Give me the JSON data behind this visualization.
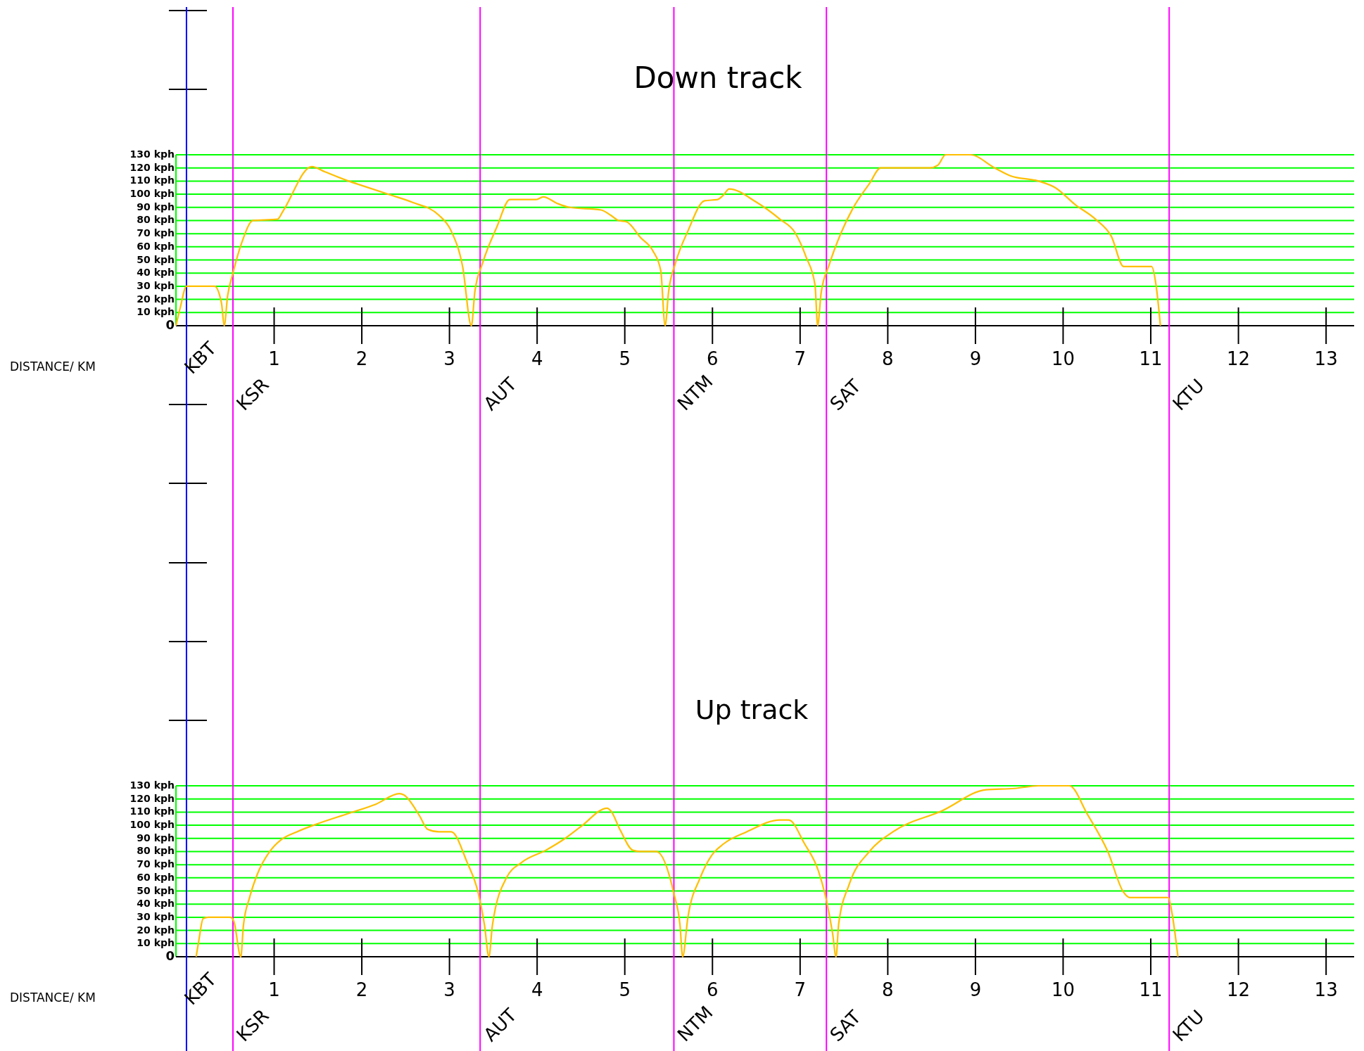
{
  "chart_data": [
    {
      "type": "line",
      "title": "Down track",
      "xlabel": "DISTANCE/ KM",
      "xlim": [
        -0.12,
        13.32
      ],
      "ylim": [
        0,
        130
      ],
      "xticks": [
        1,
        2,
        3,
        4,
        5,
        6,
        7,
        8,
        9,
        10,
        11,
        12,
        13
      ],
      "yticks": [
        {
          "value": 0,
          "label": "0"
        },
        {
          "value": 10,
          "label": "10  kph"
        },
        {
          "value": 20,
          "label": "20  kph"
        },
        {
          "value": 30,
          "label": "30  kph"
        },
        {
          "value": 40,
          "label": "40  kph"
        },
        {
          "value": 50,
          "label": "50  kph"
        },
        {
          "value": 60,
          "label": "60  kph"
        },
        {
          "value": 70,
          "label": "70  kph"
        },
        {
          "value": 80,
          "label": "80  kph"
        },
        {
          "value": 90,
          "label": "90  kph"
        },
        {
          "value": 100,
          "label": "100  kph"
        },
        {
          "value": 110,
          "label": "110  kph"
        },
        {
          "value": 120,
          "label": "120  kph"
        },
        {
          "value": 130,
          "label": "130  kph"
        }
      ],
      "grid": "y",
      "ref_lines": [
        {
          "axis": "x",
          "value": 0,
          "label": "KBT",
          "color": "#0000ff"
        },
        {
          "axis": "x",
          "value": 0.53,
          "label": "KSR",
          "color": "#ff00ff"
        },
        {
          "axis": "x",
          "value": 3.35,
          "label": "AUT",
          "color": "#ff00ff"
        },
        {
          "axis": "x",
          "value": 5.56,
          "label": "NTM",
          "color": "#ff00ff"
        },
        {
          "axis": "x",
          "value": 7.3,
          "label": "SAT",
          "color": "#ff00ff"
        },
        {
          "axis": "x",
          "value": 11.21,
          "label": "KTU",
          "color": "#ff00ff"
        }
      ],
      "series": [
        {
          "color": "#ffbf00",
          "x": [
            -0.12,
            -0.07,
            0,
            0.32,
            0.4,
            0.43,
            0.47,
            0.53,
            0.63,
            0.76,
            1.04,
            1.1,
            1.43,
            1.58,
            1.85,
            2.03,
            2.3,
            2.57,
            2.88,
            3.02,
            3.15,
            3.25,
            3.29,
            3.38,
            3.54,
            3.69,
            3.83,
            3.99,
            4.07,
            4.23,
            4.37,
            4.73,
            4.84,
            4.93,
            5.02,
            5.18,
            5.32,
            5.41,
            5.46,
            5.5,
            5.58,
            5.72,
            5.91,
            6.06,
            6.12,
            6.19,
            6.5,
            6.77,
            6.94,
            7.07,
            7.17,
            7.2,
            7.24,
            7.33,
            7.47,
            7.6,
            7.79,
            7.92,
            8.48,
            8.57,
            8.66,
            8.94,
            9.22,
            9.4,
            9.72,
            9.91,
            10.14,
            10.37,
            10.55,
            10.69,
            11.01,
            11.06,
            11.11
          ],
          "values": [
            0,
            14,
            30,
            30,
            17,
            0,
            23,
            40,
            63,
            80,
            81,
            87,
            121,
            117,
            110,
            106,
            100,
            94,
            84,
            72,
            45,
            0,
            26,
            48,
            75,
            96,
            96,
            96,
            98,
            93,
            90,
            88,
            84,
            80,
            79,
            67,
            57,
            42,
            0,
            26,
            48,
            72,
            95,
            96,
            99,
            104,
            94,
            81,
            71,
            52,
            31,
            0,
            25,
            46,
            71,
            89,
            108,
            120,
            120,
            122,
            130,
            130,
            120,
            114,
            110,
            105,
            92,
            81,
            68,
            45,
            45,
            31,
            0
          ]
        }
      ]
    },
    {
      "type": "line",
      "title": "Up track",
      "xlabel": "DISTANCE/ KM",
      "xlim": [
        -0.12,
        13.32
      ],
      "ylim": [
        0,
        130
      ],
      "xticks": [
        1,
        2,
        3,
        4,
        5,
        6,
        7,
        8,
        9,
        10,
        11,
        12,
        13
      ],
      "yticks": [
        {
          "value": 0,
          "label": "0"
        },
        {
          "value": 10,
          "label": "10  kph"
        },
        {
          "value": 20,
          "label": "20  kph"
        },
        {
          "value": 30,
          "label": "30  kph"
        },
        {
          "value": 40,
          "label": "40  kph"
        },
        {
          "value": 50,
          "label": "50  kph"
        },
        {
          "value": 60,
          "label": "60  kph"
        },
        {
          "value": 70,
          "label": "70  kph"
        },
        {
          "value": 80,
          "label": "80  kph"
        },
        {
          "value": 90,
          "label": "90  kph"
        },
        {
          "value": 100,
          "label": "100  kph"
        },
        {
          "value": 110,
          "label": "110  kph"
        },
        {
          "value": 120,
          "label": "120  kph"
        },
        {
          "value": 130,
          "label": "130  kph"
        }
      ],
      "grid": "y",
      "ref_lines": [
        {
          "axis": "x",
          "value": 0,
          "label": "KBT",
          "color": "#0000ff"
        },
        {
          "axis": "x",
          "value": 0.53,
          "label": "KSR",
          "color": "#ff00ff"
        },
        {
          "axis": "x",
          "value": 3.35,
          "label": "AUT",
          "color": "#ff00ff"
        },
        {
          "axis": "x",
          "value": 5.56,
          "label": "NTM",
          "color": "#ff00ff"
        },
        {
          "axis": "x",
          "value": 7.3,
          "label": "SAT",
          "color": "#ff00ff"
        },
        {
          "axis": "x",
          "value": 11.21,
          "label": "KTU",
          "color": "#ff00ff"
        }
      ],
      "series": [
        {
          "color": "#ffbf00",
          "x": [
            0.11,
            0.14,
            0.19,
            0.25,
            0.5,
            0.54,
            0.62,
            0.65,
            0.72,
            0.81,
            0.95,
            1.08,
            1.26,
            1.49,
            1.85,
            2.16,
            2.43,
            2.48,
            2.66,
            2.75,
            2.88,
            3.02,
            3.2,
            3.33,
            3.4,
            3.45,
            3.49,
            3.65,
            3.83,
            4.1,
            4.32,
            4.5,
            4.8,
            4.84,
            4.95,
            5.09,
            5.18,
            5.36,
            5.56,
            5.63,
            5.66,
            5.72,
            5.86,
            5.99,
            6.13,
            6.39,
            6.77,
            6.87,
            7.05,
            7.21,
            7.3,
            7.37,
            7.41,
            7.44,
            7.56,
            7.79,
            8.06,
            8.62,
            9.12,
            9.45,
            9.72,
            10.07,
            10.28,
            10.51,
            10.69,
            10.76,
            11.01,
            11.2,
            11.24,
            11.31
          ],
          "values": [
            0,
            12,
            29,
            30,
            30,
            27,
            0,
            24,
            45,
            63,
            80,
            89,
            95,
            101,
            109,
            116,
            124,
            123,
            107,
            97,
            95,
            95,
            72,
            48,
            24,
            0,
            24,
            60,
            72,
            81,
            90,
            99,
            113,
            111,
            96,
            81,
            80,
            80,
            48,
            24,
            0,
            30,
            60,
            77,
            86,
            95,
            104,
            104,
            86,
            65,
            43,
            18,
            0,
            25,
            55,
            80,
            95,
            111,
            127,
            128,
            130,
            130,
            108,
            80,
            49,
            45,
            45,
            45,
            34,
            0
          ]
        }
      ]
    }
  ]
}
